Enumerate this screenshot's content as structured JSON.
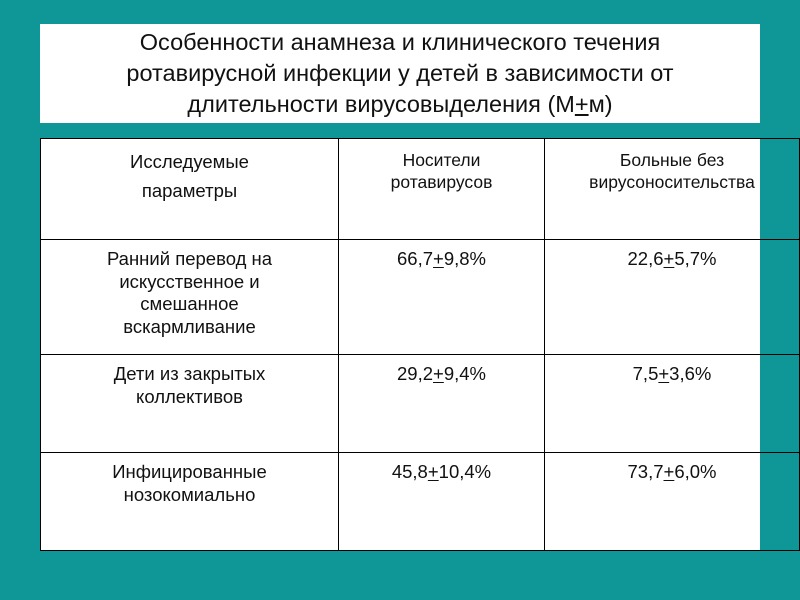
{
  "title": {
    "line1": "Особенности анамнеза и клинического течения",
    "line2": "ротавирусной инфекции у детей в зависимости от",
    "line3_pre": "длительности вирусовыделения  (М",
    "line3_pm": "+",
    "line3_post": "м)"
  },
  "table": {
    "headers": [
      [
        "Исследуемые",
        "параметры"
      ],
      [
        "Носители",
        "ротавирусов"
      ],
      [
        "Больные без",
        "вирусоносительства"
      ]
    ],
    "rows": [
      {
        "label": [
          "Ранний перевод на",
          "искусственное и",
          "смешанное",
          "вскармливание"
        ],
        "carriers": {
          "a": "66,7",
          "pm": "+",
          "b": "9,8%"
        },
        "patients": {
          "a": "22,6",
          "pm": "+",
          "b": "5,7%"
        }
      },
      {
        "label": [
          "Дети из закрытых",
          "коллективов"
        ],
        "carriers": {
          "a": "29,2",
          "pm": "+",
          "b": "9,4%"
        },
        "patients": {
          "a": "7,5",
          "pm": "+",
          "b": "3,6%"
        }
      },
      {
        "label": [
          "Инфицированные",
          "нозокомиально"
        ],
        "carriers": {
          "a": "45,8",
          "pm": "+",
          "b": "10,4%"
        },
        "patients": {
          "a": "73,7",
          "pm": "+",
          "b": "6,0%"
        }
      }
    ]
  },
  "colors": {
    "background": "#0f9696",
    "panel": "#ffffff",
    "text": "#111111",
    "border": "#000000"
  }
}
